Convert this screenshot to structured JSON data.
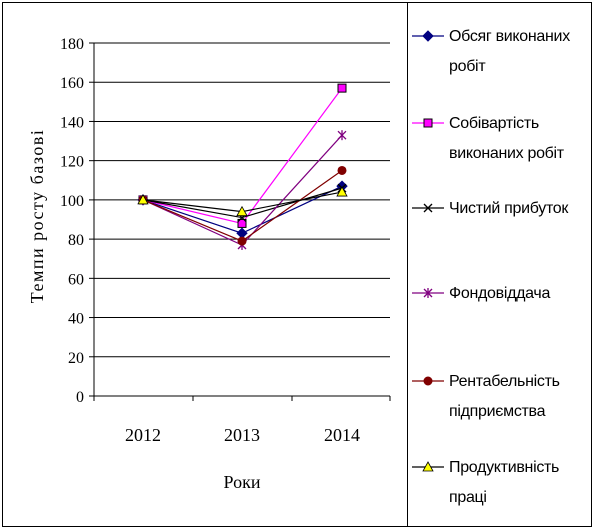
{
  "chart_data": {
    "type": "line",
    "xlabel": "Роки",
    "ylabel": "Темпи  росту базові",
    "categories": [
      "2012",
      "2013",
      "2014"
    ],
    "ylim": [
      0,
      180
    ],
    "yticks": [
      0,
      20,
      40,
      60,
      80,
      100,
      120,
      140,
      160,
      180
    ],
    "grid": true,
    "legend_position": "right",
    "series": [
      {
        "name": "Обсяг виконаних робіт",
        "values": [
          100,
          83,
          107
        ],
        "color": "#000080",
        "marker": "diamond"
      },
      {
        "name": "Собівартість виконаних робіт",
        "values": [
          100,
          88,
          157
        ],
        "color": "#ff00ff",
        "marker": "square"
      },
      {
        "name": "Чистий прибуток",
        "values": [
          100,
          91,
          106
        ],
        "color": "#000000",
        "marker": "x"
      },
      {
        "name": "Фондовіддача",
        "values": [
          100,
          77,
          133
        ],
        "color": "#800080",
        "marker": "star"
      },
      {
        "name": "Рентабельність підприємства",
        "values": [
          100,
          79,
          115
        ],
        "color": "#800000",
        "marker": "circle"
      },
      {
        "name": "Продуктивність праці",
        "values": [
          100,
          94,
          104
        ],
        "color": "#ffff00",
        "marker": "triangle"
      }
    ]
  }
}
